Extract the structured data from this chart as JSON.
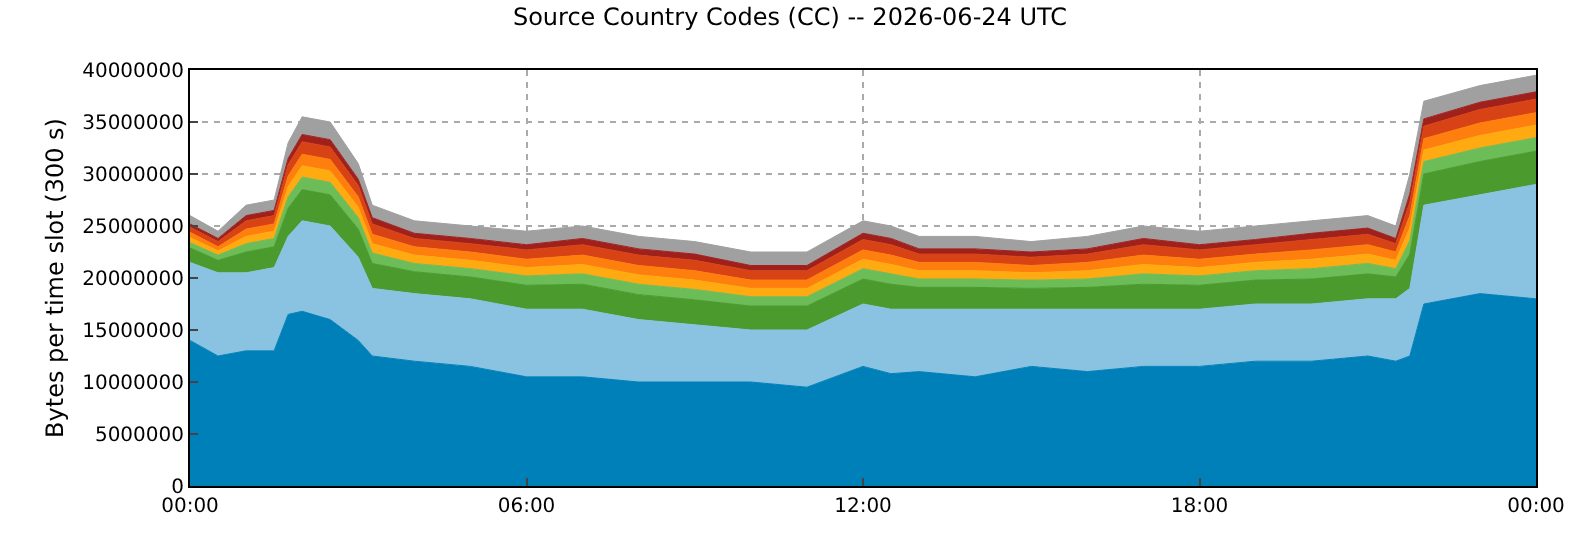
{
  "chart_data": {
    "type": "area",
    "stacked": true,
    "title": "Source Country Codes (CC) -- 2026-06-24 UTC",
    "ylabel": "Bytes per time slot (300 s)",
    "x": [
      0,
      0.5,
      1,
      1.5,
      1.75,
      2,
      2.5,
      3,
      3.25,
      4,
      5,
      6,
      7,
      8,
      9,
      10,
      11,
      12,
      12.5,
      13,
      14,
      15,
      16,
      17,
      18,
      19,
      20,
      21,
      21.5,
      21.75,
      22,
      23,
      24
    ],
    "xlim": [
      0,
      24
    ],
    "xticks": [
      {
        "value": 0,
        "label": "00:00"
      },
      {
        "value": 6,
        "label": "06:00"
      },
      {
        "value": 12,
        "label": "12:00"
      },
      {
        "value": 18,
        "label": "18:00"
      },
      {
        "value": 24,
        "label": "00:00"
      }
    ],
    "ylim": [
      0,
      40000000
    ],
    "yticks": [
      0,
      5000000,
      10000000,
      15000000,
      20000000,
      25000000,
      30000000,
      35000000,
      40000000
    ],
    "grid": true,
    "series": [
      {
        "color": "#0080b8",
        "values": [
          14000000,
          12500000,
          13000000,
          13000000,
          16500000,
          16800000,
          16000000,
          14000000,
          12500000,
          12000000,
          11500000,
          10500000,
          10500000,
          10000000,
          10000000,
          10000000,
          9500000,
          11500000,
          10800000,
          11000000,
          10500000,
          11500000,
          11000000,
          11500000,
          11500000,
          12000000,
          12000000,
          12500000,
          12000000,
          12500000,
          17500000,
          18500000,
          18000000
        ]
      },
      {
        "color": "#8ac2e2",
        "values": [
          7500000,
          8000000,
          7500000,
          8000000,
          7500000,
          8700000,
          9000000,
          8000000,
          6500000,
          6500000,
          6500000,
          6500000,
          6500000,
          6000000,
          5500000,
          5000000,
          5500000,
          6000000,
          6200000,
          6000000,
          6500000,
          5500000,
          6000000,
          5500000,
          5500000,
          5500000,
          5500000,
          5500000,
          6000000,
          6500000,
          9500000,
          9500000,
          11000000
        ]
      },
      {
        "color": "#4a9a2e",
        "values": [
          1400000,
          1200000,
          2000000,
          2000000,
          2700000,
          3000000,
          3000000,
          2700000,
          2400000,
          2100000,
          2100000,
          2300000,
          2400000,
          2400000,
          2400000,
          2300000,
          2300000,
          2400000,
          2400000,
          2100000,
          2100000,
          2000000,
          2100000,
          2400000,
          2300000,
          2300000,
          2400000,
          2400000,
          2100000,
          3300000,
          3000000,
          3200000,
          3200000
        ]
      },
      {
        "color": "#6cbc58",
        "values": [
          500000,
          500000,
          800000,
          800000,
          1100000,
          1200000,
          1200000,
          1100000,
          1000000,
          800000,
          800000,
          900000,
          1000000,
          1000000,
          1000000,
          900000,
          900000,
          1000000,
          1000000,
          800000,
          800000,
          800000,
          800000,
          1000000,
          900000,
          900000,
          1000000,
          1000000,
          800000,
          1300000,
          1200000,
          1300000,
          1300000
        ]
      },
      {
        "color": "#ffaa10",
        "values": [
          500000,
          400000,
          700000,
          700000,
          1000000,
          1100000,
          1100000,
          1000000,
          900000,
          800000,
          800000,
          800000,
          900000,
          900000,
          900000,
          800000,
          800000,
          900000,
          900000,
          800000,
          800000,
          700000,
          800000,
          900000,
          800000,
          800000,
          900000,
          900000,
          800000,
          1200000,
          1100000,
          1200000,
          1200000
        ]
      },
      {
        "color": "#ff7f0e",
        "values": [
          500000,
          400000,
          700000,
          700000,
          1000000,
          1100000,
          1100000,
          1000000,
          900000,
          800000,
          800000,
          800000,
          900000,
          900000,
          900000,
          800000,
          800000,
          900000,
          900000,
          800000,
          800000,
          700000,
          800000,
          900000,
          800000,
          800000,
          900000,
          900000,
          800000,
          1200000,
          1100000,
          1200000,
          1200000
        ]
      },
      {
        "color": "#d84315",
        "values": [
          500000,
          500000,
          800000,
          800000,
          1100000,
          1200000,
          1200000,
          1100000,
          1000000,
          800000,
          800000,
          900000,
          1000000,
          1000000,
          1000000,
          900000,
          900000,
          1000000,
          1000000,
          800000,
          800000,
          800000,
          800000,
          1000000,
          900000,
          900000,
          1000000,
          1000000,
          800000,
          1300000,
          1200000,
          1300000,
          1300000
        ]
      },
      {
        "color": "#a0201c",
        "values": [
          300000,
          300000,
          500000,
          500000,
          600000,
          700000,
          700000,
          600000,
          600000,
          500000,
          500000,
          500000,
          600000,
          600000,
          600000,
          500000,
          500000,
          600000,
          600000,
          500000,
          500000,
          500000,
          500000,
          600000,
          500000,
          500000,
          600000,
          600000,
          500000,
          800000,
          700000,
          700000,
          700000
        ]
      },
      {
        "color": "#a0a0a0",
        "values": [
          800000,
          700000,
          1000000,
          1000000,
          1500000,
          1700000,
          1700000,
          1500000,
          1200000,
          1200000,
          1200000,
          1300000,
          1200000,
          1200000,
          1200000,
          1300000,
          1300000,
          1200000,
          1200000,
          1200000,
          1200000,
          1000000,
          1200000,
          1200000,
          1300000,
          1300000,
          1200000,
          1200000,
          1200000,
          1900000,
          1700000,
          1600000,
          1600000
        ]
      }
    ]
  }
}
